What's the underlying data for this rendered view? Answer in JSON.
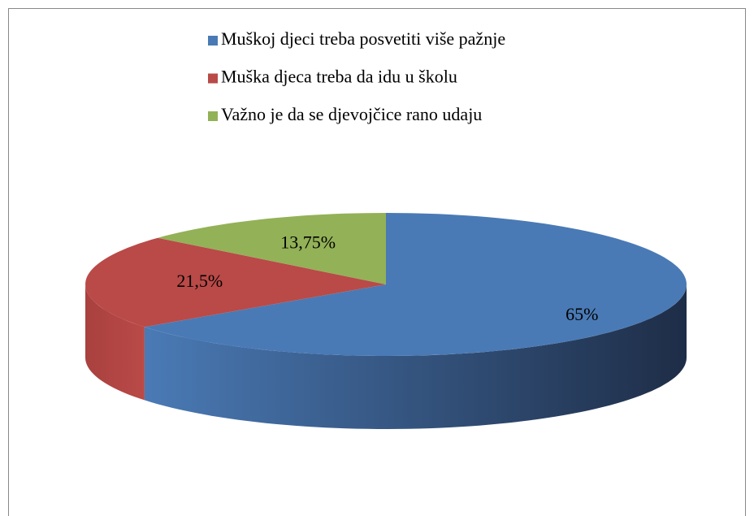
{
  "chart_data": {
    "type": "pie3d",
    "categories": [
      "Muškoj djeci treba posvetiti više pažnje",
      "Muška djeca treba da idu u školu",
      "Važno je da se djevojčice rano udaju"
    ],
    "values": [
      65,
      21.5,
      13.75
    ],
    "value_labels": [
      "65%",
      "21,5%",
      "13,75%"
    ],
    "colors": [
      "#4a7ab5",
      "#b94a48",
      "#93b157"
    ],
    "legend": "top"
  }
}
